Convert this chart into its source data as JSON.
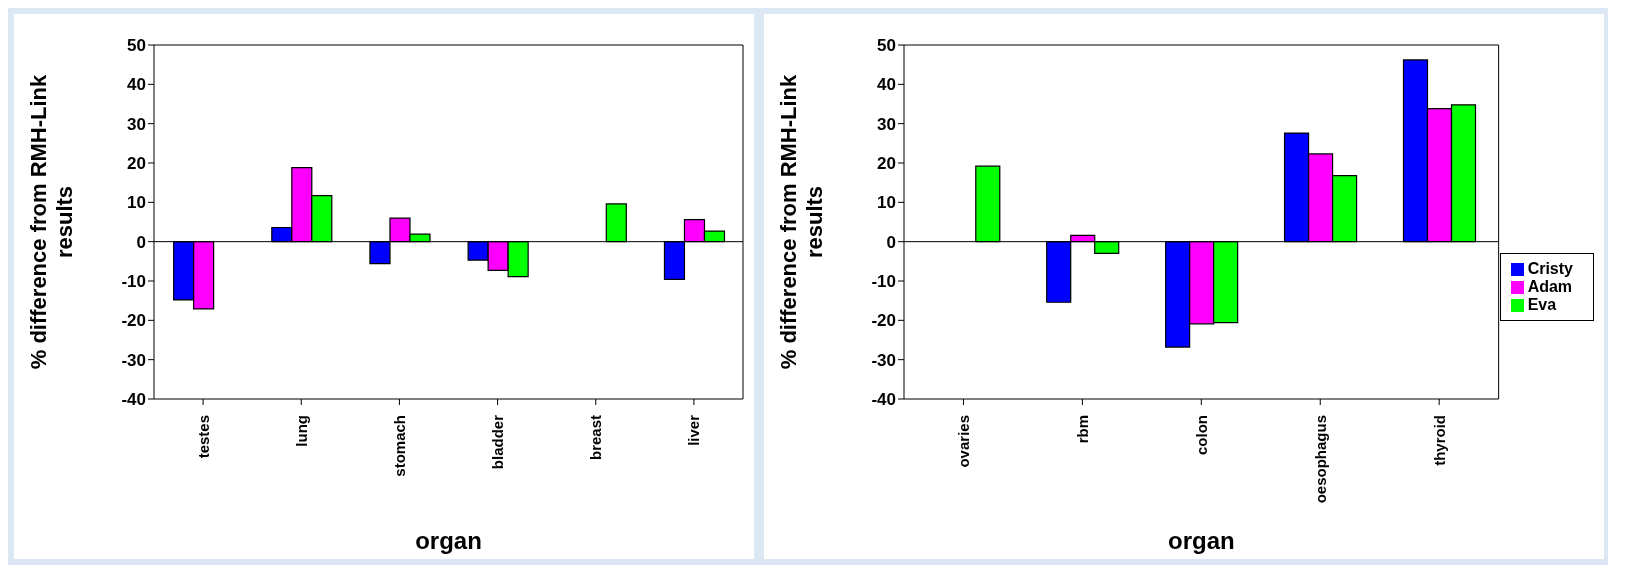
{
  "chart_data": [
    {
      "type": "bar",
      "categories": [
        "testes",
        "lung",
        "stomach",
        "bladder",
        "breast",
        "liver"
      ],
      "xlabel": "organ",
      "ylabel": "% difference from RMH-Link\nresults",
      "ylim": [
        -40,
        50
      ],
      "yticks": [
        -40,
        -30,
        -20,
        -10,
        0,
        10,
        20,
        30,
        40,
        50
      ],
      "legend": false,
      "series": [
        {
          "color": "#0000ff",
          "values": [
            -14.8,
            3.6,
            -5.6,
            -4.7,
            null,
            -9.6
          ]
        },
        {
          "color": "#ff00ff",
          "values": [
            -17.1,
            18.8,
            6.0,
            -7.3,
            null,
            5.6
          ]
        },
        {
          "color": "#00ff00",
          "values": [
            null,
            11.7,
            1.9,
            -8.9,
            9.6,
            2.7
          ]
        }
      ]
    },
    {
      "type": "bar",
      "categories": [
        "ovaries",
        "rbm",
        "colon",
        "oesophagus",
        "thyroid"
      ],
      "xlabel": "organ",
      "ylabel": "% difference from RMH-Link\nresults",
      "ylim": [
        -40,
        50
      ],
      "yticks": [
        -40,
        -30,
        -20,
        -10,
        0,
        10,
        20,
        30,
        40,
        50
      ],
      "legend": "right",
      "series": [
        {
          "name": "Cristy",
          "color": "#0000ff",
          "values": [
            null,
            -15.4,
            -26.8,
            27.6,
            46.2
          ]
        },
        {
          "name": "Adam",
          "color": "#ff00ff",
          "values": [
            null,
            1.6,
            -20.9,
            22.3,
            33.8
          ]
        },
        {
          "name": "Eva",
          "color": "#00ff00",
          "values": [
            19.2,
            -3.0,
            -20.6,
            16.8,
            34.8
          ]
        }
      ]
    }
  ]
}
